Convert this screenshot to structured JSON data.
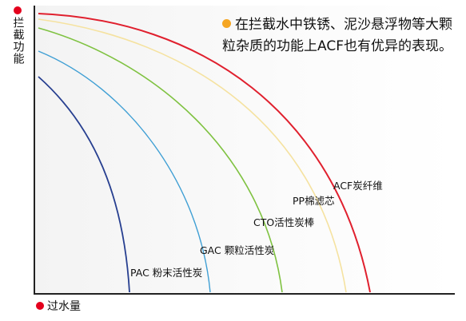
{
  "axes": {
    "y_label": "拦截功能",
    "x_label": "过水量"
  },
  "note": {
    "text": "在拦截水中铁锈、泥沙悬浮物等大颗粒杂质的功能上ACF也有优异的表现。"
  },
  "series": [
    {
      "name": "ACF炭纤维",
      "color": "#e0202e"
    },
    {
      "name": "PP棉滤芯",
      "color": "#f5e2a0"
    },
    {
      "name": "CTO活性炭棒",
      "color": "#7fc241"
    },
    {
      "name": "GAC 颗粒活性炭",
      "color": "#3f9fd4"
    },
    {
      "name": "PAC 粉末活性炭",
      "color": "#273f90"
    }
  ]
}
